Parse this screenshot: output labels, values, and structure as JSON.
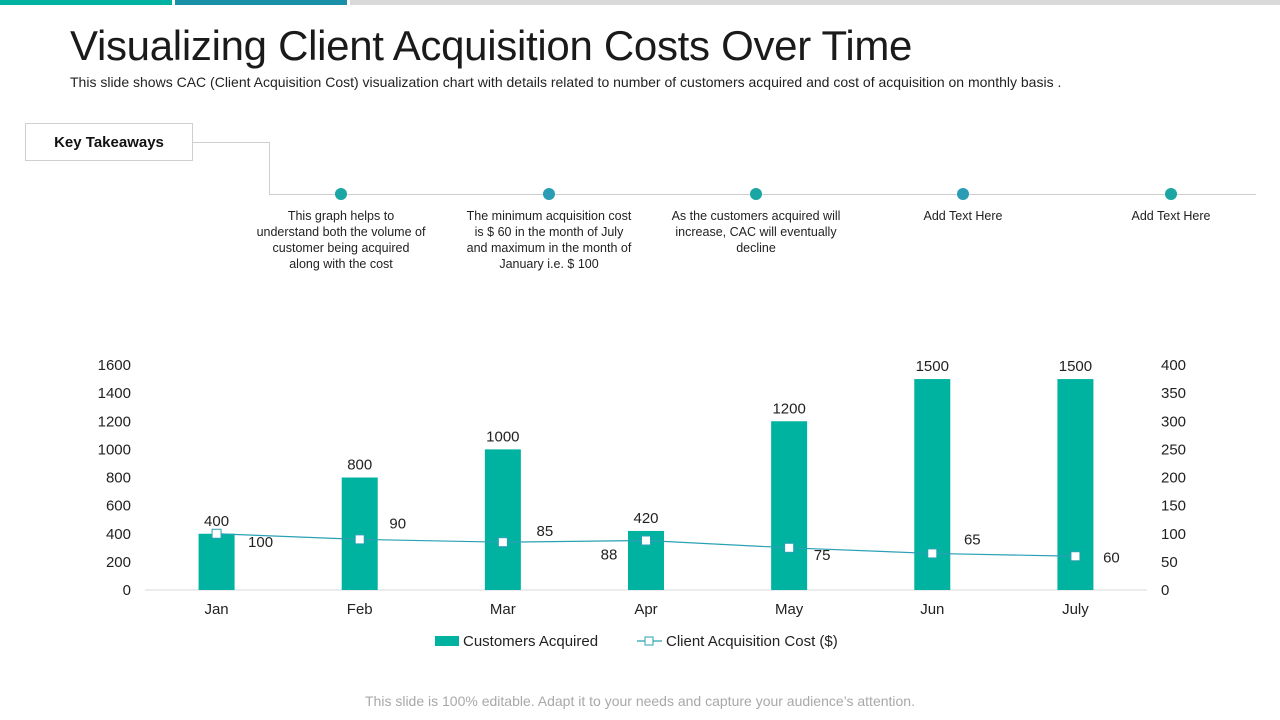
{
  "colors": {
    "teal": "#00b2a0",
    "dot": "#1aa6a2",
    "line": "#2aa0b4",
    "bar_top_1": "#00b2a0",
    "bar_top_2": "#1a8fa8",
    "bar_top_3": "#d9d9d9"
  },
  "header": {
    "title": "Visualizing Client Acquisition Costs Over Time",
    "subtitle": "This slide shows CAC (Client Acquisition Cost) visualization chart with details related to number of customers acquired and cost of acquisition on monthly basis ."
  },
  "key_takeaways": {
    "label": "Key Takeaways",
    "items": [
      {
        "text": "This graph helps to understand both the volume of customer being acquired along with the cost"
      },
      {
        "text": "The minimum acquisition cost is $ 60 in the month of July and maximum in the month of January i.e. $ 100"
      },
      {
        "text": "As the customers acquired will increase, CAC will eventually decline"
      },
      {
        "text": "Add Text Here"
      },
      {
        "text": "Add Text Here"
      }
    ]
  },
  "chart_data": {
    "type": "bar",
    "categories": [
      "Jan",
      "Feb",
      "Mar",
      "Apr",
      "May",
      "Jun",
      "July"
    ],
    "series": [
      {
        "name": "Customers Acquired",
        "type": "bar",
        "axis": "left",
        "values": [
          400,
          800,
          1000,
          420,
          1200,
          1500,
          1500
        ]
      },
      {
        "name": "Client Acquisition Cost ($)",
        "type": "line",
        "axis": "right",
        "values": [
          100,
          90,
          85,
          88,
          75,
          65,
          60
        ]
      }
    ],
    "ylim_left": [
      0,
      1600
    ],
    "yticks_left": [
      0,
      200,
      400,
      600,
      800,
      1000,
      1200,
      1400,
      1600
    ],
    "ylim_right": [
      0,
      400
    ],
    "yticks_right": [
      0,
      50,
      100,
      150,
      200,
      250,
      300,
      350,
      400
    ],
    "legend": "bottom",
    "grid": false
  },
  "footer": {
    "text": "This slide is 100% editable. Adapt it to your needs and capture your audience’s attention."
  }
}
